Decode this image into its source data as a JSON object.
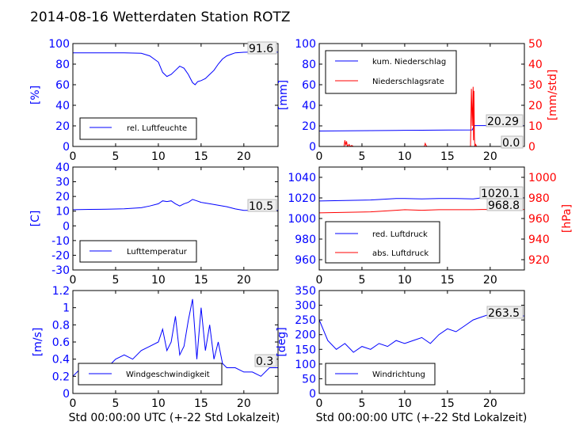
{
  "title": "2014-08-16 Wetterdaten Station ROTZ",
  "chart_data": [
    {
      "id": "humidity",
      "type": "line",
      "xlim": [
        0,
        24
      ],
      "ylim": [
        0,
        100
      ],
      "xticks": [
        0,
        5,
        10,
        15,
        20
      ],
      "yticks": [
        0,
        20,
        40,
        60,
        80,
        100
      ],
      "ylabel": "[%]",
      "legend": "bottom-left",
      "series": [
        {
          "name": "rel. Luftfeuchte",
          "color": "#0000ff",
          "x": [
            0,
            2,
            4,
            6,
            8,
            9,
            10,
            10.5,
            11,
            11.5,
            12,
            12.5,
            13,
            13.5,
            14,
            14.3,
            14.6,
            15,
            15.5,
            16,
            16.5,
            17,
            17.5,
            18,
            18.5,
            19,
            20,
            21,
            22,
            23,
            24
          ],
          "y": [
            91,
            91,
            91,
            91,
            90.5,
            88,
            82,
            72,
            68,
            70,
            74,
            78,
            76,
            70,
            62,
            60,
            63,
            64,
            66,
            70,
            74,
            80,
            85,
            88,
            89.5,
            91,
            91.5,
            91.8,
            91.6,
            91.6,
            91.6
          ]
        }
      ],
      "annotations": [
        {
          "text": "91.6"
        }
      ]
    },
    {
      "id": "precipitation",
      "type": "line",
      "xlim": [
        0,
        24
      ],
      "ylim": [
        0,
        100
      ],
      "y2lim": [
        0,
        50
      ],
      "xticks": [
        0,
        5,
        10,
        15,
        20
      ],
      "yticks": [
        0,
        20,
        40,
        60,
        80,
        100
      ],
      "y2ticks": [
        0,
        10,
        20,
        30,
        40,
        50
      ],
      "ylabel": "[mm]",
      "y2label": "[mm/std]",
      "legend": "top-left",
      "series": [
        {
          "name": "kum. Niederschlag",
          "axis": "left",
          "color": "#0000ff",
          "x": [
            0,
            3,
            6,
            9,
            12,
            15,
            17.9,
            18.0,
            18.2,
            24
          ],
          "y": [
            15,
            15.2,
            15.4,
            15.6,
            15.8,
            16,
            16.1,
            18,
            20.29,
            20.29
          ]
        },
        {
          "name": "Niederschlagsrate",
          "axis": "right",
          "color": "#ff0000",
          "x": [
            0,
            2.9,
            3.0,
            3.1,
            3.2,
            3.3,
            3.5,
            3.6,
            3.8,
            4,
            12.3,
            12.4,
            12.5,
            12.6,
            17.7,
            17.8,
            17.9,
            18.0,
            18.05,
            18.1,
            18.15,
            18.2,
            18.3,
            18.4,
            24
          ],
          "y": [
            0,
            0,
            3,
            0.5,
            2.5,
            0,
            1,
            0,
            0.5,
            0,
            0,
            1.5,
            0.5,
            0,
            0,
            28,
            10,
            29,
            3,
            27,
            5,
            0,
            1,
            0,
            0
          ]
        }
      ],
      "annotations": [
        {
          "text": "20.29"
        },
        {
          "text": "0.0"
        }
      ]
    },
    {
      "id": "temperature",
      "type": "line",
      "xlim": [
        0,
        24
      ],
      "ylim": [
        -30,
        40
      ],
      "xticks": [
        0,
        5,
        10,
        15,
        20
      ],
      "yticks": [
        -30,
        -20,
        -10,
        0,
        10,
        20,
        30,
        40
      ],
      "ylabel": "[C]",
      "legend": "bottom-left",
      "series": [
        {
          "name": "Lufttemperatur",
          "color": "#0000ff",
          "x": [
            0,
            2,
            4,
            6,
            8,
            9,
            10,
            10.5,
            11,
            11.5,
            12,
            12.5,
            13,
            13.5,
            14,
            14.5,
            15,
            16,
            17,
            18,
            19,
            20,
            21,
            22,
            24
          ],
          "y": [
            11,
            11.2,
            11.3,
            11.6,
            12.3,
            13.5,
            15,
            17,
            16.5,
            17,
            15,
            13.5,
            15,
            16,
            18,
            17,
            16,
            15,
            14,
            13,
            11.5,
            10.5,
            10.5,
            10.5,
            10.5
          ]
        }
      ],
      "annotations": [
        {
          "text": "10.5"
        }
      ]
    },
    {
      "id": "pressure",
      "type": "line",
      "xlim": [
        0,
        24
      ],
      "ylim": [
        950,
        1050
      ],
      "y2lim": [
        910,
        1010
      ],
      "xticks": [
        0,
        5,
        10,
        15,
        20
      ],
      "yticks": [
        960,
        980,
        1000,
        1020,
        1040
      ],
      "y2ticks": [
        920,
        940,
        960,
        980,
        1000
      ],
      "ylabel": "",
      "y2label": "[hPa]",
      "legend": "bottom-left",
      "series": [
        {
          "name": "red. Luftdruck",
          "axis": "left",
          "color": "#0000ff",
          "x": [
            0,
            3,
            6,
            9,
            10,
            12,
            14,
            16,
            18,
            19,
            20,
            22,
            24
          ],
          "y": [
            1017,
            1017.5,
            1018,
            1019.5,
            1019.5,
            1019,
            1019.5,
            1019.5,
            1019,
            1020,
            1020.1,
            1020.1,
            1020.1
          ]
        },
        {
          "name": "abs. Luftdruck",
          "axis": "right",
          "color": "#ff0000",
          "x": [
            0,
            3,
            6,
            9,
            10,
            12,
            14,
            16,
            18,
            19,
            20,
            22,
            24
          ],
          "y": [
            965.5,
            966,
            966.5,
            968,
            968.5,
            968,
            968.5,
            968.5,
            968.5,
            968.8,
            968.8,
            968.8,
            968.8
          ]
        }
      ],
      "annotations": [
        {
          "text": "1020.1"
        },
        {
          "text": "968.8"
        }
      ]
    },
    {
      "id": "windspeed",
      "type": "line",
      "xlim": [
        0,
        24
      ],
      "ylim": [
        0,
        1.2
      ],
      "xticks": [
        0,
        5,
        10,
        15,
        20
      ],
      "yticks": [
        0,
        0.2,
        0.4,
        0.6,
        0.8,
        1.0,
        1.2
      ],
      "ylabel": "[m/s]",
      "xlabel": "Std 00:00:00 UTC (+-22 Std Lokalzeit)",
      "legend": "bottom-center",
      "series": [
        {
          "name": "Windgeschwindigkeit",
          "color": "#0000ff",
          "x": [
            0,
            1,
            2,
            3,
            4,
            5,
            6,
            7,
            8,
            9,
            10,
            10.5,
            11,
            11.5,
            12,
            12.5,
            13,
            13.5,
            14,
            14.5,
            15,
            15.5,
            16,
            16.5,
            17,
            17.5,
            18,
            19,
            20,
            21,
            22,
            23,
            24
          ],
          "y": [
            0.2,
            0.3,
            0.25,
            0.35,
            0.3,
            0.4,
            0.45,
            0.4,
            0.5,
            0.55,
            0.6,
            0.75,
            0.5,
            0.6,
            0.9,
            0.45,
            0.55,
            0.85,
            1.1,
            0.4,
            1.0,
            0.5,
            0.8,
            0.4,
            0.6,
            0.35,
            0.3,
            0.3,
            0.25,
            0.25,
            0.2,
            0.3,
            0.3
          ]
        }
      ],
      "annotations": [
        {
          "text": "0.3"
        }
      ]
    },
    {
      "id": "winddirection",
      "type": "line",
      "xlim": [
        0,
        24
      ],
      "ylim": [
        0,
        350
      ],
      "xticks": [
        0,
        5,
        10,
        15,
        20
      ],
      "yticks": [
        0,
        50,
        100,
        150,
        200,
        250,
        300,
        350
      ],
      "ylabel": "[deg]",
      "xlabel": "Std 00:00:00 UTC (+-22 Std Lokalzeit)",
      "legend": "bottom-left",
      "series": [
        {
          "name": "Windrichtung",
          "color": "#0000ff",
          "x": [
            0,
            1,
            2,
            3,
            4,
            5,
            6,
            7,
            8,
            9,
            10,
            11,
            12,
            13,
            14,
            15,
            16,
            17,
            18,
            19,
            20,
            21,
            22,
            23,
            24
          ],
          "y": [
            250,
            180,
            150,
            170,
            140,
            160,
            150,
            170,
            160,
            180,
            170,
            180,
            190,
            170,
            200,
            220,
            210,
            230,
            250,
            260,
            270,
            280,
            290,
            265,
            263.5
          ]
        }
      ],
      "annotations": [
        {
          "text": "263.5"
        }
      ]
    }
  ]
}
